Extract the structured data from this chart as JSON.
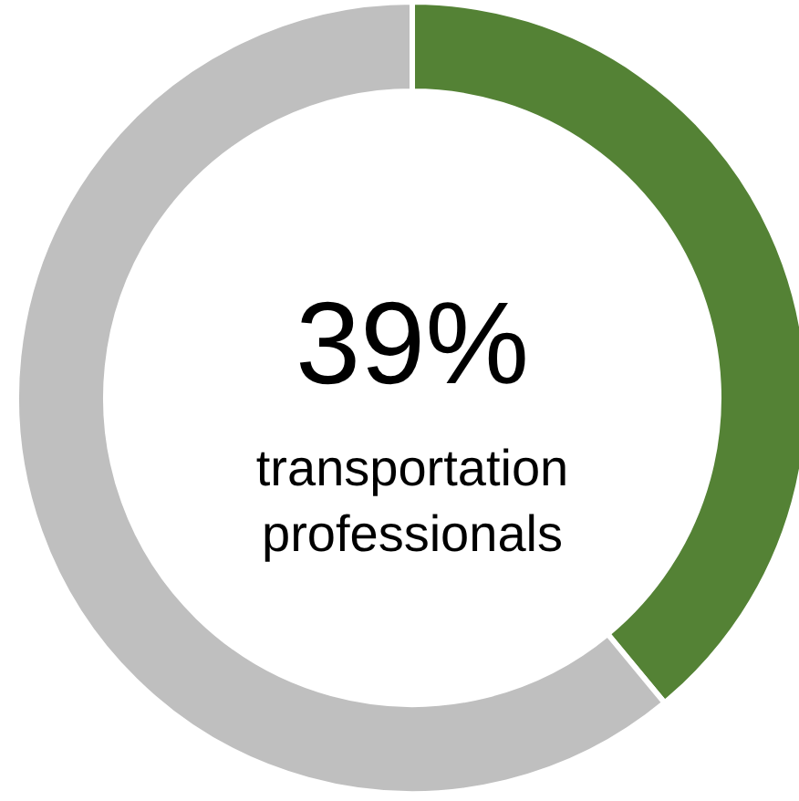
{
  "chart_data": {
    "type": "donut",
    "categories": [
      null,
      null
    ],
    "values": [
      39,
      61
    ],
    "colors": [
      "#548235",
      "#bfbfbf"
    ],
    "value_labels": [
      "39%",
      null
    ],
    "annotations": [
      "transportation professionals"
    ]
  }
}
